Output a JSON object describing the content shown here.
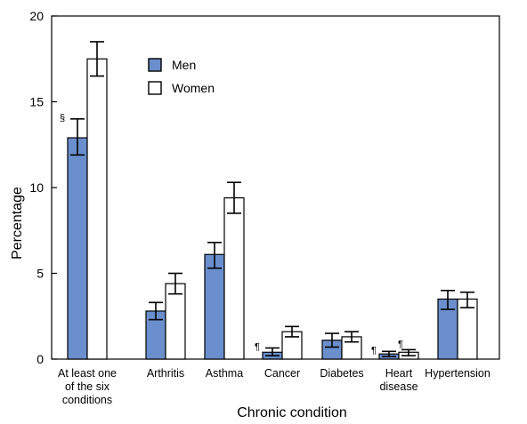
{
  "chart_data": {
    "type": "bar",
    "categories": [
      [
        "At least one",
        "of the six",
        "conditions"
      ],
      [
        "Arthritis"
      ],
      [
        "Asthma"
      ],
      [
        "Cancer"
      ],
      [
        "Diabetes"
      ],
      [
        "Heart",
        "disease"
      ],
      [
        "Hypertension"
      ]
    ],
    "series": [
      {
        "name": "Men",
        "color": "#6a8fcc",
        "values": [
          12.9,
          2.8,
          6.1,
          0.4,
          1.1,
          0.3,
          3.5
        ],
        "ci_low": [
          11.9,
          2.3,
          5.3,
          0.2,
          0.7,
          0.15,
          2.9
        ],
        "ci_high": [
          14.0,
          3.3,
          6.8,
          0.65,
          1.5,
          0.45,
          4.0
        ],
        "annotations": [
          "§",
          "",
          "",
          "¶",
          "",
          "¶",
          ""
        ]
      },
      {
        "name": "Women",
        "color": "#ffffff",
        "values": [
          17.5,
          4.4,
          9.4,
          1.6,
          1.3,
          0.4,
          3.5
        ],
        "ci_low": [
          16.5,
          3.8,
          8.5,
          1.3,
          1.0,
          0.2,
          3.0
        ],
        "ci_high": [
          18.5,
          5.0,
          10.3,
          1.9,
          1.6,
          0.55,
          3.9
        ],
        "annotations": [
          "",
          "",
          "",
          "",
          "",
          "¶",
          ""
        ]
      }
    ],
    "ylim": [
      0,
      20
    ],
    "yticks": [
      0,
      5,
      10,
      15,
      20
    ],
    "ylabel": "Percentage",
    "xlabel": "Chronic condition",
    "legend_position": "top-left inside"
  }
}
